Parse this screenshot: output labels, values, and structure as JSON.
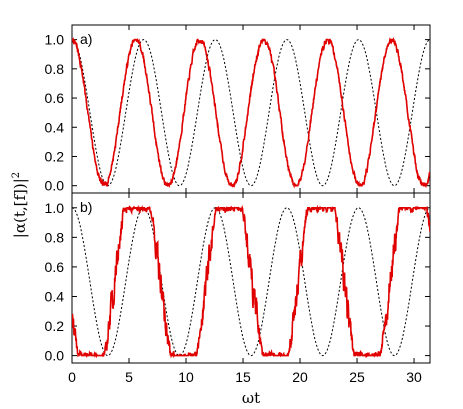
{
  "chart_data": [
    {
      "type": "line",
      "panel_label": "a)",
      "xlim": [
        0,
        31.4
      ],
      "ylim": [
        -0.05,
        1.1
      ],
      "yticks": [
        "0.0",
        "0.2",
        "0.4",
        "0.6",
        "0.8",
        "1.0"
      ],
      "ytick_values": [
        0,
        0.2,
        0.4,
        0.6,
        0.8,
        1.0
      ],
      "series": [
        {
          "style": "dashed",
          "color": "#000000",
          "formula": "cos^2(wt/2)",
          "params": {
            "freq": 1.0
          }
        },
        {
          "style": "solid",
          "color": "#e00000",
          "params": {
            "freq": 1.12,
            "phase": 0.0,
            "noise": 0.04,
            "seed": 7
          }
        }
      ]
    },
    {
      "type": "line",
      "panel_label": "b)",
      "xlim": [
        0,
        31.4
      ],
      "ylim": [
        -0.05,
        1.1
      ],
      "yticks": [
        "0.0",
        "0.2",
        "0.4",
        "0.6",
        "0.8",
        "1.0"
      ],
      "ytick_values": [
        0,
        0.2,
        0.4,
        0.6,
        0.8,
        1.0
      ],
      "series": [
        {
          "style": "dashed",
          "color": "#000000",
          "formula": "cos^2(wt/2)",
          "params": {
            "freq": 1.0
          }
        },
        {
          "style": "solid",
          "color": "#e00000",
          "params": {
            "freq": 0.78,
            "phase": 0.9,
            "noise": 0.22,
            "seed": 19
          }
        }
      ]
    }
  ],
  "x_axis": {
    "label": "ωt",
    "ticks": [
      "0",
      "5",
      "10",
      "15",
      "20",
      "25",
      "30"
    ],
    "tick_values": [
      0,
      5,
      10,
      15,
      20,
      25,
      30
    ]
  },
  "y_axis": {
    "label": "|α(t,[f])|",
    "label_superscript": "2"
  },
  "colors": {
    "red_curve": "#e00000",
    "dashed_curve": "#000000"
  }
}
